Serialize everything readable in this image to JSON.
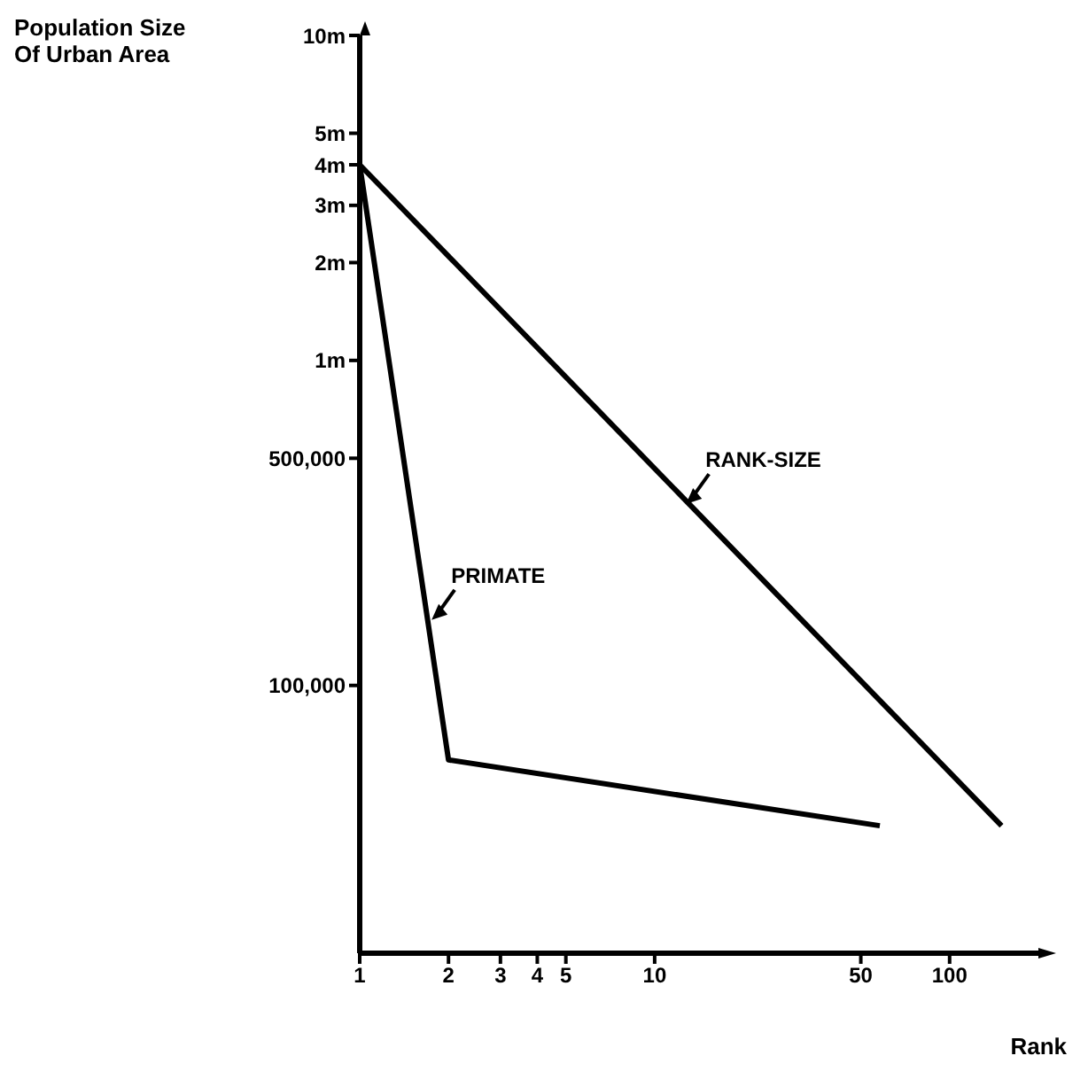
{
  "chart_data": {
    "type": "line",
    "xlabel": "Rank",
    "ylabel": "Population Size\nOf Urban Area",
    "log": "xy",
    "xlim": [
      1,
      200
    ],
    "ylim": [
      15000,
      10000000
    ],
    "xticks": [
      1,
      2,
      3,
      4,
      5,
      10,
      50,
      100
    ],
    "yticks": [
      {
        "value": 100000,
        "label": "100,000"
      },
      {
        "value": 500000,
        "label": "500,000"
      },
      {
        "value": 1000000,
        "label": "1m"
      },
      {
        "value": 2000000,
        "label": "2m"
      },
      {
        "value": 3000000,
        "label": "3m"
      },
      {
        "value": 4000000,
        "label": "4m"
      },
      {
        "value": 5000000,
        "label": "5m"
      },
      {
        "value": 10000000,
        "label": "10m"
      }
    ],
    "grid": false,
    "legend": false,
    "marker": "none",
    "line_style": "solid",
    "series": [
      {
        "name": "RANK-SIZE",
        "color": "#000000",
        "x": [
          1,
          150
        ],
        "values": [
          4000000,
          37000
        ]
      },
      {
        "name": "PRIMATE",
        "color": "#000000",
        "x": [
          1,
          2,
          58
        ],
        "values": [
          4000000,
          59000,
          37000
        ]
      }
    ]
  }
}
